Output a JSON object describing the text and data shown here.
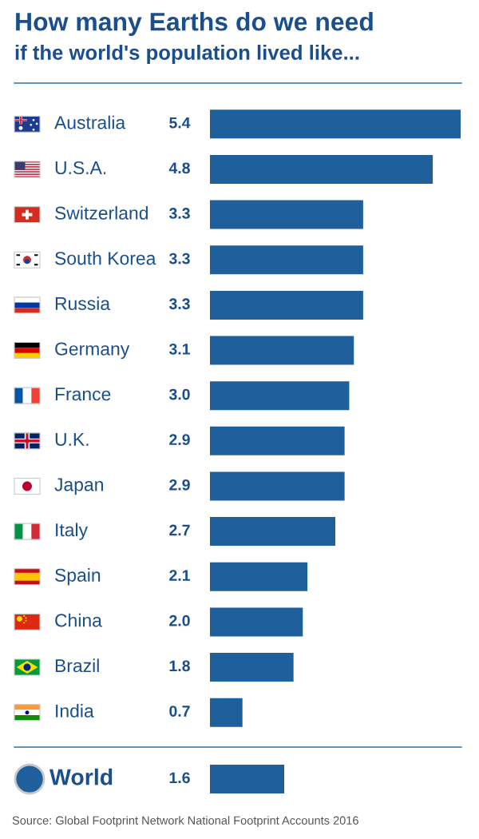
{
  "chart_data": [
    {
      "type": "bar",
      "orientation": "horizontal",
      "title": "How many Earths do we need",
      "subtitle": "if the world's population lived like...",
      "categories": [
        "Australia",
        "U.S.A.",
        "Switzerland",
        "South Korea",
        "Russia",
        "Germany",
        "France",
        "U.K.",
        "Japan",
        "Italy",
        "Spain",
        "China",
        "Brazil",
        "India"
      ],
      "values": [
        5.4,
        4.8,
        3.3,
        3.3,
        3.3,
        3.1,
        3.0,
        2.9,
        2.9,
        2.7,
        2.1,
        2.0,
        1.8,
        0.7
      ],
      "value_labels": [
        "5.4",
        "4.8",
        "3.3",
        "3.3",
        "3.3",
        "3.1",
        "3.0",
        "2.9",
        "2.9",
        "2.7",
        "2.1",
        "2.0",
        "1.8",
        "0.7"
      ],
      "color": "#1f5f9c",
      "tick_labels": "y"
    },
    {
      "type": "bar",
      "orientation": "horizontal",
      "categories": [
        "World"
      ],
      "values": [
        1.6
      ],
      "value_labels": [
        "1.6"
      ],
      "color": "#1f5f9c",
      "tick_labels": "y",
      "annotations": [
        "Source: Global Footprint Network National Footprint Accounts 2016"
      ]
    }
  ]
}
